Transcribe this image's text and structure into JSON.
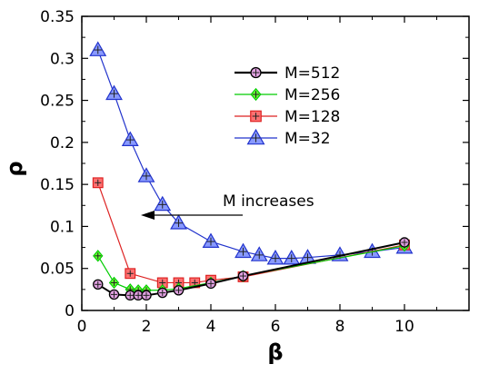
{
  "chart_data": {
    "type": "line",
    "title": "",
    "xlabel": "β",
    "ylabel": "ρ",
    "xlim": [
      0,
      12
    ],
    "ylim": [
      0,
      0.35
    ],
    "xticks": [
      0,
      2,
      4,
      6,
      8,
      10
    ],
    "yticks": [
      0,
      0.05,
      0.1,
      0.15,
      0.2,
      0.25,
      0.3,
      0.35
    ],
    "xtick_labels": [
      "0",
      "2",
      "4",
      "6",
      "8",
      "10"
    ],
    "ytick_labels": [
      "0",
      "0.05",
      "0.1",
      "0.15",
      "0.2",
      "0.25",
      "0.3",
      "0.35"
    ],
    "grid": false,
    "legend_position": "top-right",
    "series": [
      {
        "name": "M=512",
        "color": "#000000",
        "marker_fill": "#e0a0e0",
        "marker": "circle",
        "x": [
          0.5,
          1,
          1.5,
          1.75,
          2,
          2.5,
          3,
          4,
          5,
          10
        ],
        "y": [
          0.031,
          0.019,
          0.018,
          0.018,
          0.018,
          0.021,
          0.024,
          0.032,
          0.041,
          0.081
        ]
      },
      {
        "name": "M=256",
        "color": "#00cc00",
        "marker_fill": "#66ff33",
        "marker": "diamond",
        "x": [
          0.5,
          1,
          1.5,
          1.75,
          2,
          2.5,
          3,
          4,
          5,
          10
        ],
        "y": [
          0.065,
          0.033,
          0.025,
          0.024,
          0.024,
          0.024,
          0.026,
          0.033,
          0.041,
          0.077
        ]
      },
      {
        "name": "M=128",
        "color": "#dd2222",
        "marker_fill": "#ff7070",
        "marker": "square",
        "x": [
          0.5,
          1.5,
          2.5,
          3,
          3.5,
          4,
          5,
          10
        ],
        "y": [
          0.152,
          0.044,
          0.033,
          0.033,
          0.033,
          0.036,
          0.04,
          0.078
        ]
      },
      {
        "name": "M=32",
        "color": "#2233cc",
        "marker_fill": "#8899ff",
        "marker": "triangle",
        "x": [
          0.5,
          1,
          1.5,
          2,
          2.5,
          3,
          4,
          5,
          5.5,
          6,
          6.5,
          7,
          8,
          9,
          10
        ],
        "y": [
          0.31,
          0.258,
          0.203,
          0.16,
          0.126,
          0.104,
          0.082,
          0.07,
          0.066,
          0.062,
          0.062,
          0.063,
          0.066,
          0.07,
          0.075
        ]
      }
    ],
    "annotations": [
      {
        "text": "M increases",
        "arrow": true
      }
    ]
  }
}
